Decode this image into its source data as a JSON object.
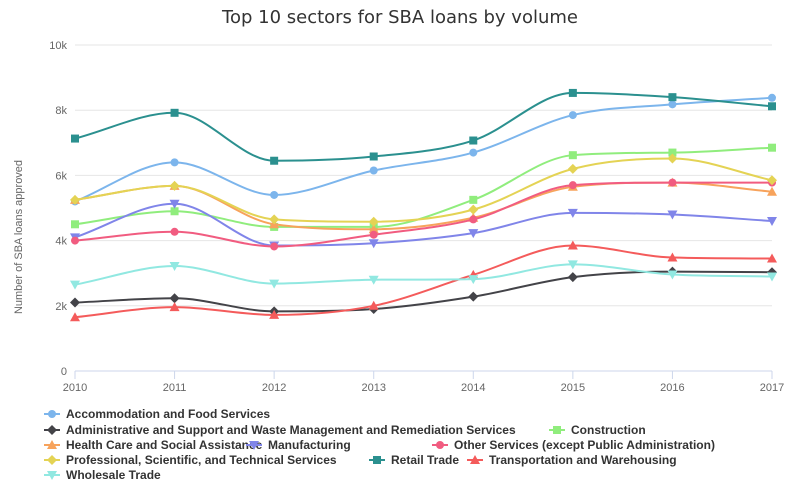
{
  "chart_data": {
    "type": "line",
    "title": "Top 10 sectors for SBA loans by volume",
    "xlabel": "",
    "ylabel": "Number of SBA loans approved",
    "x": [
      2010,
      2011,
      2012,
      2013,
      2014,
      2015,
      2016,
      2017
    ],
    "ylim": [
      0,
      10000
    ],
    "yticks": [
      0,
      2000,
      4000,
      6000,
      8000,
      10000
    ],
    "ytick_labels": [
      "0",
      "2k",
      "4k",
      "6k",
      "8k",
      "10k"
    ],
    "grid": true,
    "legend_position": "bottom-left",
    "series": [
      {
        "name": "Accommodation and Food Services",
        "color": "#7cb5ec",
        "marker": "circle",
        "values": [
          5200,
          6400,
          5400,
          6150,
          6700,
          7850,
          8180,
          8380
        ]
      },
      {
        "name": "Administrative and Support and Waste Management and Remediation Services",
        "color": "#434348",
        "marker": "diamond",
        "values": [
          2100,
          2230,
          1830,
          1900,
          2280,
          2880,
          3050,
          3030
        ]
      },
      {
        "name": "Construction",
        "color": "#90ed7d",
        "marker": "square",
        "values": [
          4500,
          4900,
          4420,
          4420,
          5250,
          6620,
          6700,
          6850
        ]
      },
      {
        "name": "Health Care and Social Assistance",
        "color": "#f7a35c",
        "marker": "triangle",
        "values": [
          5250,
          5680,
          4500,
          4350,
          4700,
          5650,
          5780,
          5500
        ]
      },
      {
        "name": "Manufacturing",
        "color": "#8085e9",
        "marker": "triangle-down",
        "values": [
          4100,
          5130,
          3850,
          3920,
          4230,
          4850,
          4800,
          4600
        ]
      },
      {
        "name": "Other Services (except Public Administration)",
        "color": "#f15c80",
        "marker": "circle",
        "values": [
          4000,
          4270,
          3820,
          4180,
          4650,
          5700,
          5780,
          5780
        ]
      },
      {
        "name": "Professional, Scientific, and Technical Services",
        "color": "#e4d354",
        "marker": "diamond",
        "values": [
          5250,
          5680,
          4650,
          4580,
          4950,
          6200,
          6520,
          5850
        ]
      },
      {
        "name": "Retail Trade",
        "color": "#2b908f",
        "marker": "square",
        "values": [
          7130,
          7920,
          6450,
          6580,
          7070,
          8530,
          8400,
          8120
        ]
      },
      {
        "name": "Transportation and Warehousing",
        "color": "#f45b5b",
        "marker": "triangle",
        "values": [
          1650,
          1960,
          1720,
          2000,
          2950,
          3850,
          3480,
          3450
        ]
      },
      {
        "name": "Wholesale Trade",
        "color": "#91e8e1",
        "marker": "triangle-down",
        "values": [
          2650,
          3220,
          2680,
          2800,
          2820,
          3270,
          2960,
          2900
        ]
      }
    ]
  }
}
